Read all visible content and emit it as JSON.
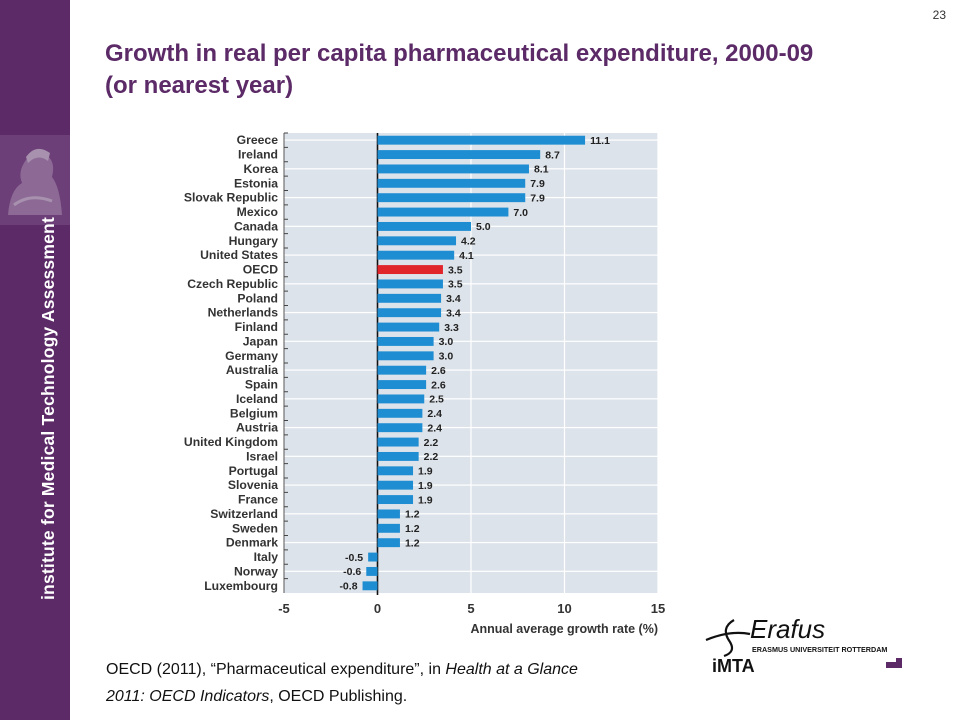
{
  "page": {
    "number": "23",
    "title_line1": "Growth in real per capita pharmaceutical expenditure, 2000-09",
    "title_line2": "(or nearest year)"
  },
  "sidebar": {
    "text": "institute for Medical Technology Assessment",
    "background": "#5b2a67"
  },
  "citation": {
    "part1": "OECD (2011), “Pharmaceutical expenditure”, in ",
    "italic1": "Health at a Glance",
    "italic2": "2011: OECD Indicators",
    "part2": ", OECD Publishing."
  },
  "logo": {
    "signature": "Erafus",
    "university": "ERASMUS UNIVERSITEIT ROTTERDAM",
    "imta": "iMTA"
  },
  "chart_data": {
    "type": "bar",
    "orientation": "horizontal",
    "categories": [
      "Greece",
      "Ireland",
      "Korea",
      "Estonia",
      "Slovak Republic",
      "Mexico",
      "Canada",
      "Hungary",
      "United States",
      "OECD",
      "Czech Republic",
      "Poland",
      "Netherlands",
      "Finland",
      "Japan",
      "Germany",
      "Australia",
      "Spain",
      "Iceland",
      "Belgium",
      "Austria",
      "United Kingdom",
      "Israel",
      "Portugal",
      "Slovenia",
      "France",
      "Switzerland",
      "Sweden",
      "Denmark",
      "Italy",
      "Norway",
      "Luxembourg"
    ],
    "values": [
      11.1,
      8.7,
      8.1,
      7.9,
      7.9,
      7.0,
      5.0,
      4.2,
      4.1,
      3.5,
      3.5,
      3.4,
      3.4,
      3.3,
      3.0,
      3.0,
      2.6,
      2.6,
      2.5,
      2.4,
      2.4,
      2.2,
      2.2,
      1.9,
      1.9,
      1.9,
      1.2,
      1.2,
      1.2,
      -0.5,
      -0.6,
      -0.8
    ],
    "value_labels": [
      "11.1",
      "8.7",
      "8.1",
      "7.9",
      "7.9",
      "7.0",
      "5.0",
      "4.2",
      "4.1",
      "3.5",
      "3.5",
      "3.4",
      "3.4",
      "3.3",
      "3.0",
      "3.0",
      "2.6",
      "2.6",
      "2.5",
      "2.4",
      "2.4",
      "2.2",
      "2.2",
      "1.9",
      "1.9",
      "1.9",
      "1.2",
      "1.2",
      "1.2",
      "-0.5",
      "-0.6",
      "-0.8"
    ],
    "highlight": "OECD",
    "xlabel": "Annual average growth rate (%)",
    "xlim": [
      -5,
      15
    ],
    "xticks": [
      "-5",
      "0",
      "5",
      "10",
      "15"
    ],
    "grid": true,
    "colors": {
      "bar": "#1f8dd2",
      "highlight": "#e0252b",
      "panel": "#dde3ea",
      "stripe": "#ffffff"
    }
  }
}
